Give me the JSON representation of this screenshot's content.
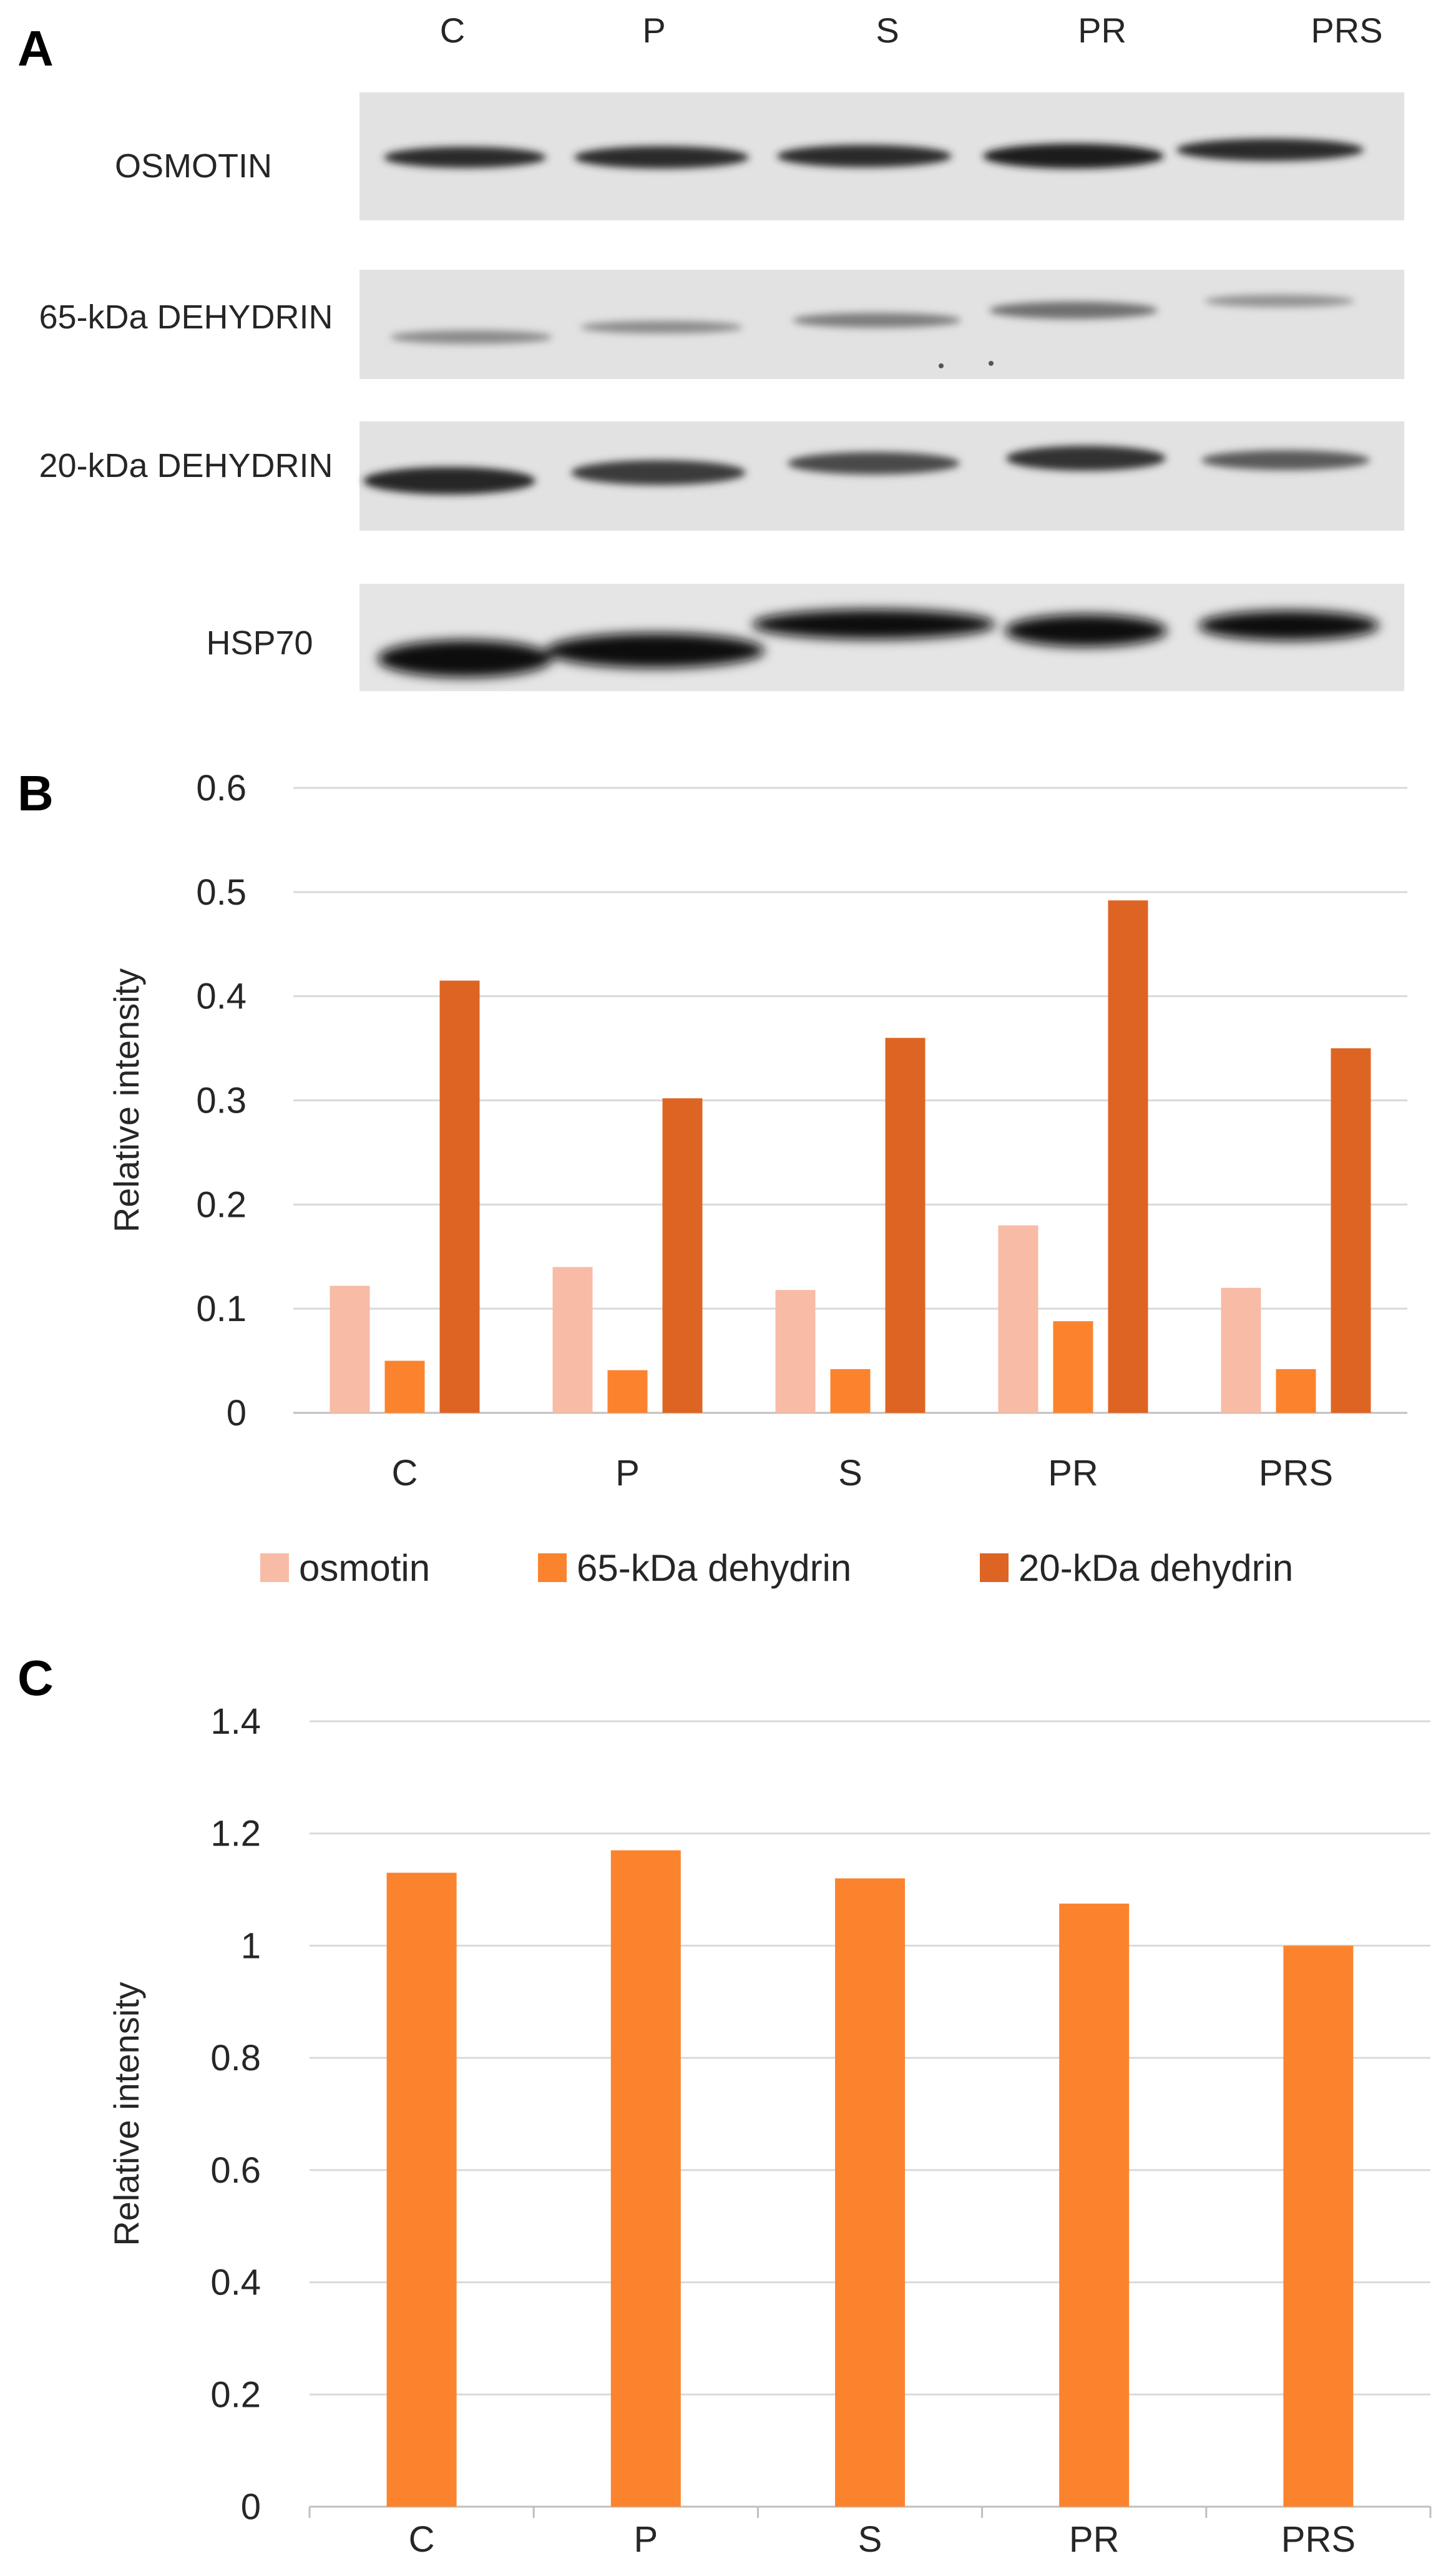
{
  "panels": {
    "a": "A",
    "b": "B",
    "c": "C"
  },
  "blot": {
    "lanes": [
      "C",
      "P",
      "S",
      "PR",
      "PRS"
    ],
    "rows": [
      "OSMOTIN",
      "65-kDa DEHYDRIN",
      "20-kDa DEHYDRIN",
      "HSP70"
    ]
  },
  "chart_data": [
    {
      "id": "B",
      "type": "bar",
      "categories": [
        "C",
        "P",
        "S",
        "PR",
        "PRS"
      ],
      "series": [
        {
          "name": "osmotin",
          "color": "#f8bba6",
          "values": [
            0.122,
            0.14,
            0.118,
            0.18,
            0.12
          ]
        },
        {
          "name": "65-kDa dehydrin",
          "color": "#fb832d",
          "values": [
            0.05,
            0.041,
            0.042,
            0.088,
            0.042
          ]
        },
        {
          "name": "20-kDa dehydrin",
          "color": "#de6423",
          "values": [
            0.415,
            0.302,
            0.36,
            0.492,
            0.35
          ]
        }
      ],
      "title": "",
      "xlabel": "",
      "ylabel": "Relative intensity",
      "ylim": [
        0,
        0.6
      ],
      "yticks": [
        "0",
        "0.1",
        "0.2",
        "0.3",
        "0.4",
        "0.5",
        "0.6"
      ],
      "legend": "bottom",
      "grid": true
    },
    {
      "id": "C",
      "type": "bar",
      "categories": [
        "C",
        "P",
        "S",
        "PR",
        "PRS"
      ],
      "series": [
        {
          "name": "Relative intensity",
          "color": "#fb832d",
          "values": [
            1.13,
            1.17,
            1.12,
            1.075,
            1.0
          ]
        }
      ],
      "title": "",
      "xlabel": "",
      "ylabel": "Relative intensity",
      "ylim": [
        0,
        1.4
      ],
      "yticks": [
        "0",
        "0.2",
        "0.4",
        "0.6",
        "0.8",
        "1",
        "1.2",
        "1.4"
      ],
      "grid": true
    }
  ]
}
